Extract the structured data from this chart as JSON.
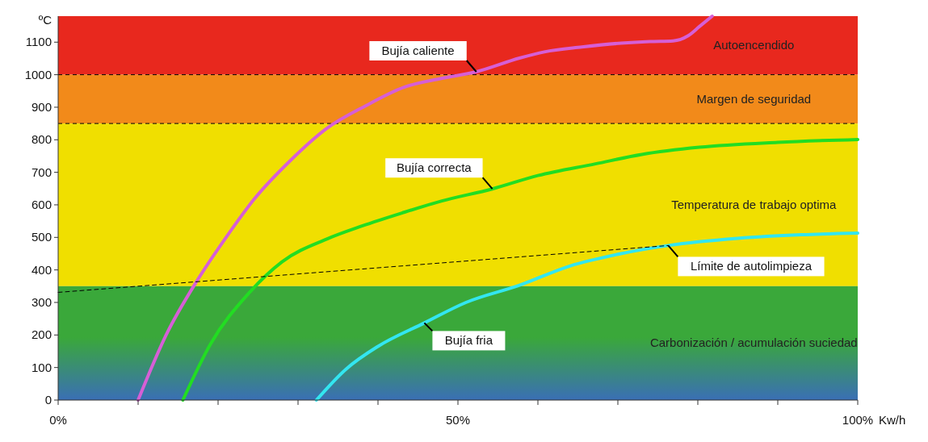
{
  "chart_data": {
    "type": "line",
    "xlabel": "Kw/h",
    "ylabel": "ºC",
    "xlim": [
      0,
      100
    ],
    "xticks": [
      {
        "value": 0,
        "label": "0%"
      },
      {
        "value": 10,
        "label": null
      },
      {
        "value": 20,
        "label": null
      },
      {
        "value": 30,
        "label": null
      },
      {
        "value": 40,
        "label": null
      },
      {
        "value": 50,
        "label": "50%"
      },
      {
        "value": 60,
        "label": null
      },
      {
        "value": 70,
        "label": null
      },
      {
        "value": 80,
        "label": null
      },
      {
        "value": 90,
        "label": null
      },
      {
        "value": 100,
        "label": "100%"
      }
    ],
    "ylim": [
      0,
      1180
    ],
    "yticks": [
      0,
      100,
      200,
      300,
      400,
      500,
      600,
      700,
      800,
      900,
      1000,
      1100
    ],
    "series": [
      {
        "name": "Bujía caliente",
        "color": "#d65fd6",
        "x": [
          10,
          13.5,
          17.4,
          21,
          24.5,
          29,
          33.6,
          38.5,
          43.2,
          47.8,
          52.3,
          57.7,
          60.8,
          65.5,
          70.4,
          74,
          76.9,
          78.8,
          80.2,
          81.8
        ],
        "values": [
          0,
          200,
          368,
          500,
          617,
          735,
          835,
          905,
          961,
          988,
          1009,
          1051,
          1070,
          1085,
          1097,
          1102,
          1104,
          1120,
          1148,
          1180
        ]
      },
      {
        "name": "Bujía correcta",
        "color": "#22dd22",
        "x": [
          15.6,
          19,
          23.9,
          28,
          33.6,
          38,
          43,
          48,
          54.3,
          60,
          67.2,
          73,
          80.2,
          90,
          100
        ],
        "values": [
          0,
          170,
          330,
          425,
          495,
          535,
          575,
          612,
          649,
          690,
          726,
          755,
          777,
          792,
          801
        ]
      },
      {
        "name": "Bujía fria",
        "color": "#33e6f0",
        "x": [
          32.3,
          36,
          40,
          45.8,
          51,
          57.7,
          64,
          70,
          76.3,
          85,
          93,
          100
        ],
        "values": [
          0,
          95,
          165,
          237,
          300,
          353,
          412,
          448,
          475,
          497,
          508,
          513
        ]
      },
      {
        "name": "Límite de autolimpieza",
        "color": "#000000",
        "line_style": "dashed",
        "x": [
          0,
          76.3
        ],
        "values": [
          331,
          475
        ]
      }
    ],
    "ref_lines": [
      {
        "axis": "y",
        "value": 1000,
        "line_style": "dashed",
        "color": "#000000"
      },
      {
        "axis": "y",
        "value": 850,
        "line_style": "dashed",
        "color": "#000000"
      }
    ],
    "bands": [
      {
        "axis": "y",
        "from": 1000,
        "to": 1180,
        "label": "Autoencendido",
        "color": "#e8281e"
      },
      {
        "axis": "y",
        "from": 850,
        "to": 1000,
        "label": "Margen de seguridad",
        "color": "#f28a1a"
      },
      {
        "axis": "y",
        "from": 350,
        "to": 850,
        "label": "Temperatura de trabajo optima",
        "color": "#f0df00"
      },
      {
        "axis": "y",
        "from": 0,
        "to": 350,
        "label": "Carbonización / acumulación suciedad",
        "color": "#3aa83a"
      }
    ]
  }
}
